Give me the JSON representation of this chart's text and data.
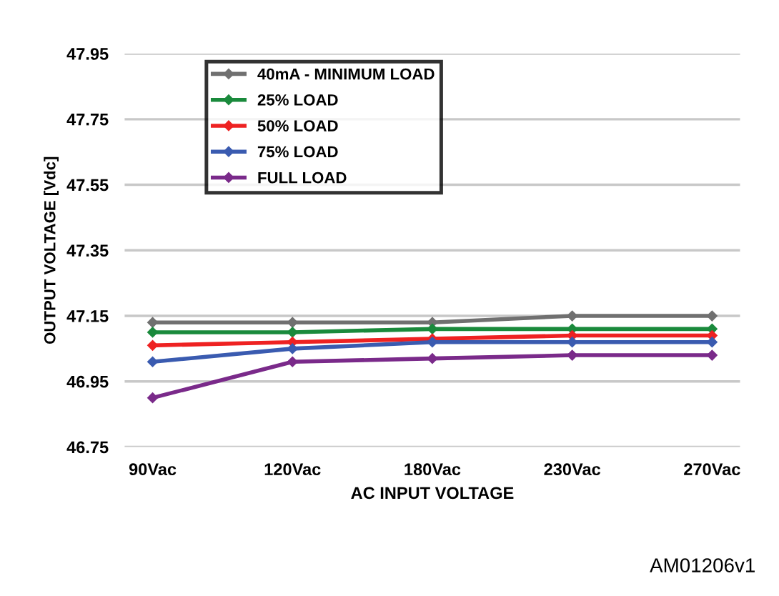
{
  "chart_data": {
    "type": "line",
    "xlabel": "AC INPUT VOLTAGE",
    "ylabel": "OUTPUT VOLTAGE [Vdc]",
    "categories": [
      "90Vac",
      "120Vac",
      "180Vac",
      "230Vac",
      "270Vac"
    ],
    "series": [
      {
        "name": "40mA - MINIMUM LOAD",
        "color": "#707070",
        "values": [
          47.13,
          47.13,
          47.13,
          47.15,
          47.15
        ]
      },
      {
        "name": "25% LOAD",
        "color": "#1a8a3c",
        "values": [
          47.1,
          47.1,
          47.11,
          47.11,
          47.11
        ]
      },
      {
        "name": "50% LOAD",
        "color": "#ee2222",
        "values": [
          47.06,
          47.07,
          47.08,
          47.09,
          47.09
        ]
      },
      {
        "name": "75% LOAD",
        "color": "#3a5bb0",
        "values": [
          47.01,
          47.05,
          47.07,
          47.07,
          47.07
        ]
      },
      {
        "name": "FULL LOAD",
        "color": "#7a2a8a",
        "values": [
          46.9,
          47.01,
          47.02,
          47.03,
          47.03
        ]
      }
    ],
    "ylim": [
      46.75,
      47.95
    ],
    "yticks": [
      46.75,
      46.95,
      47.15,
      47.35,
      47.55,
      47.75,
      47.95
    ],
    "grid": "y",
    "legend": "top left",
    "marker": "diamond",
    "line_style": "solid",
    "annotations": [
      "AM01206v1"
    ]
  }
}
